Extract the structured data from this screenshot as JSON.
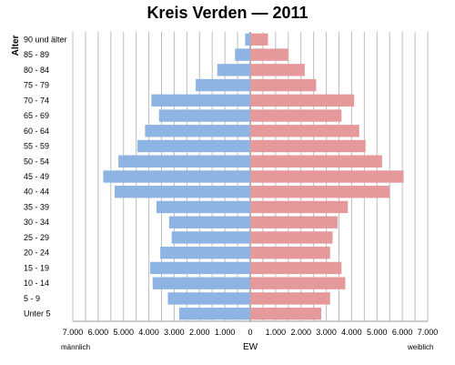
{
  "chart_data": {
    "type": "bar",
    "orientation": "horizontal",
    "title": "Kreis Verden — 2011",
    "ylabel": "Alter",
    "xlabel": "EW",
    "left_label": "männlich",
    "right_label": "weiblich",
    "categories": [
      "Unter 5",
      "5 - 9",
      "10 - 14",
      "15 - 19",
      "20 - 24",
      "25 - 29",
      "30 - 34",
      "35 - 39",
      "40 - 44",
      "45 - 49",
      "50 - 54",
      "55 - 59",
      "60 - 64",
      "65 - 69",
      "70 - 74",
      "75 - 79",
      "80 - 84",
      "85 - 89",
      "90 und älter"
    ],
    "series": [
      {
        "name": "männlich",
        "color": "#8db4e2",
        "values": [
          2800,
          3250,
          3850,
          3950,
          3550,
          3100,
          3200,
          3700,
          5350,
          5800,
          5200,
          4450,
          4150,
          3600,
          3900,
          2150,
          1300,
          600,
          200
        ]
      },
      {
        "name": "weiblich",
        "color": "#e6999b",
        "values": [
          2800,
          3150,
          3750,
          3600,
          3150,
          3250,
          3450,
          3850,
          5500,
          6050,
          5200,
          4550,
          4300,
          3600,
          4100,
          2600,
          2150,
          1500,
          700
        ]
      }
    ],
    "xlim": [
      -7000,
      7000
    ],
    "xticks": [
      "7.000",
      "6.000",
      "5.000",
      "4.000",
      "3.000",
      "2.000",
      "1.000",
      "0",
      "1.000",
      "2.000",
      "3.000",
      "4.000",
      "5.000",
      "6.000",
      "7.000"
    ],
    "grid": true,
    "minor_grid_step": 500
  }
}
